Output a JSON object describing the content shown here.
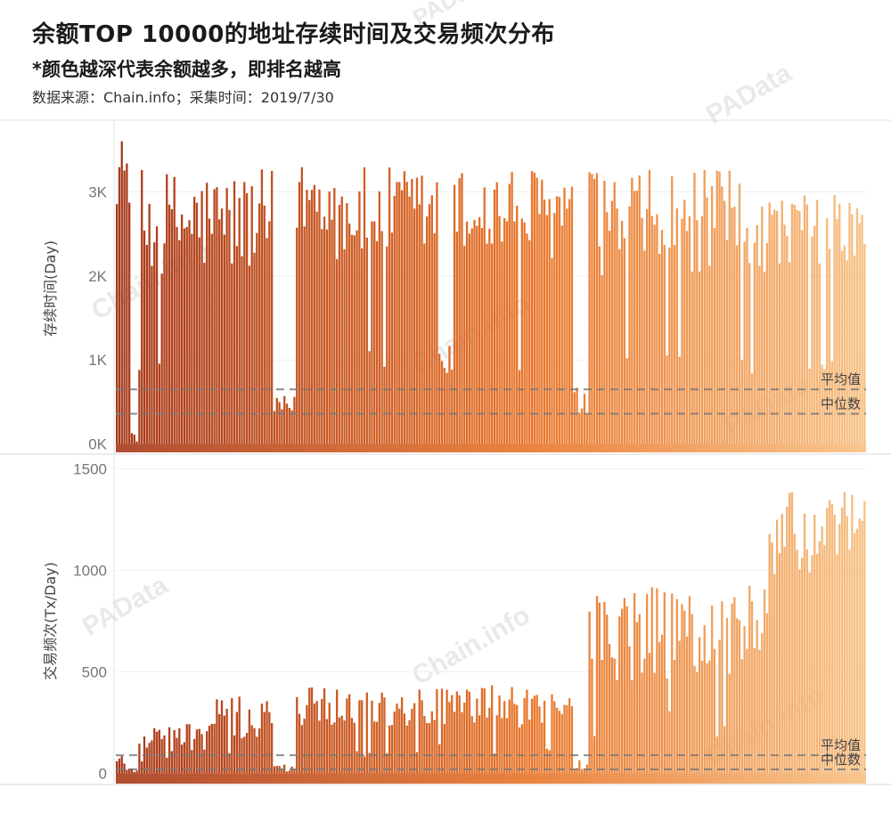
{
  "header": {
    "title": "余额TOP 10000的地址存续时间及交易频次分布",
    "subtitle": "*颜色越深代表余额越多，即排名越高",
    "source": "数据来源：Chain.info；采集时间：2019/7/30"
  },
  "watermarks": [
    "PAData",
    "Chain.info"
  ],
  "colors": {
    "dark": "#a8391a",
    "mid": "#e8752a",
    "light": "#f7c083",
    "refline": "#7a7a7a"
  },
  "chart_data": [
    {
      "type": "bar",
      "ylabel": "存续时间(Day)",
      "ylim": [
        -100,
        3800
      ],
      "yticks": [
        {
          "value": 0,
          "label": "0K"
        },
        {
          "value": 1000,
          "label": "1K"
        },
        {
          "value": 2000,
          "label": "2K"
        },
        {
          "value": 3000,
          "label": "3K"
        }
      ],
      "reference_lines": [
        {
          "label": "平均值",
          "value": 650
        },
        {
          "label": "中位数",
          "value": 360
        }
      ],
      "note": "~10000 address bars ordered by balance rank (darkest = highest balance)",
      "segments": [
        {
          "range": [
            0,
            0.02
          ],
          "base": 3300,
          "spread": 600
        },
        {
          "range": [
            0.02,
            0.03
          ],
          "base": 100,
          "spread": 50
        },
        {
          "range": [
            0.03,
            0.21
          ],
          "base": 2700,
          "spread": 900
        },
        {
          "range": [
            0.21,
            0.24
          ],
          "base": 450,
          "spread": 200
        },
        {
          "range": [
            0.24,
            0.29
          ],
          "base": 3000,
          "spread": 700
        },
        {
          "range": [
            0.29,
            0.43
          ],
          "base": 2800,
          "spread": 800
        },
        {
          "range": [
            0.43,
            0.45
          ],
          "base": 1000,
          "spread": 300
        },
        {
          "range": [
            0.45,
            0.61
          ],
          "base": 2800,
          "spread": 800
        },
        {
          "range": [
            0.61,
            0.63
          ],
          "base": 500,
          "spread": 300
        },
        {
          "range": [
            0.63,
            0.87
          ],
          "base": 2700,
          "spread": 900
        },
        {
          "range": [
            0.87,
            1.0
          ],
          "base": 2600,
          "spread": 600
        }
      ]
    },
    {
      "type": "bar",
      "ylabel": "交易频次(Tx/Day)",
      "ylim": [
        -50,
        1550
      ],
      "yticks": [
        {
          "value": 0,
          "label": "0"
        },
        {
          "value": 500,
          "label": "500"
        },
        {
          "value": 1000,
          "label": "1000"
        },
        {
          "value": 1500,
          "label": "1500"
        }
      ],
      "reference_lines": [
        {
          "label": "平均值",
          "value": 90
        },
        {
          "label": "中位数",
          "value": 20
        }
      ],
      "segments": [
        {
          "range": [
            0,
            0.02
          ],
          "base": 60,
          "spread": 80
        },
        {
          "range": [
            0.02,
            0.03
          ],
          "base": 20,
          "spread": 20
        },
        {
          "range": [
            0.03,
            0.12
          ],
          "base": 190,
          "spread": 110
        },
        {
          "range": [
            0.12,
            0.21
          ],
          "base": 280,
          "spread": 160
        },
        {
          "range": [
            0.21,
            0.24
          ],
          "base": 30,
          "spread": 30
        },
        {
          "range": [
            0.24,
            0.43
          ],
          "base": 340,
          "spread": 150
        },
        {
          "range": [
            0.43,
            0.61
          ],
          "base": 340,
          "spread": 150
        },
        {
          "range": [
            0.61,
            0.63
          ],
          "base": 60,
          "spread": 60
        },
        {
          "range": [
            0.63,
            0.82
          ],
          "base": 700,
          "spread": 350
        },
        {
          "range": [
            0.82,
            0.87
          ],
          "base": 760,
          "spread": 300
        },
        {
          "range": [
            0.87,
            1.0
          ],
          "base": 1200,
          "spread": 300
        }
      ]
    }
  ]
}
